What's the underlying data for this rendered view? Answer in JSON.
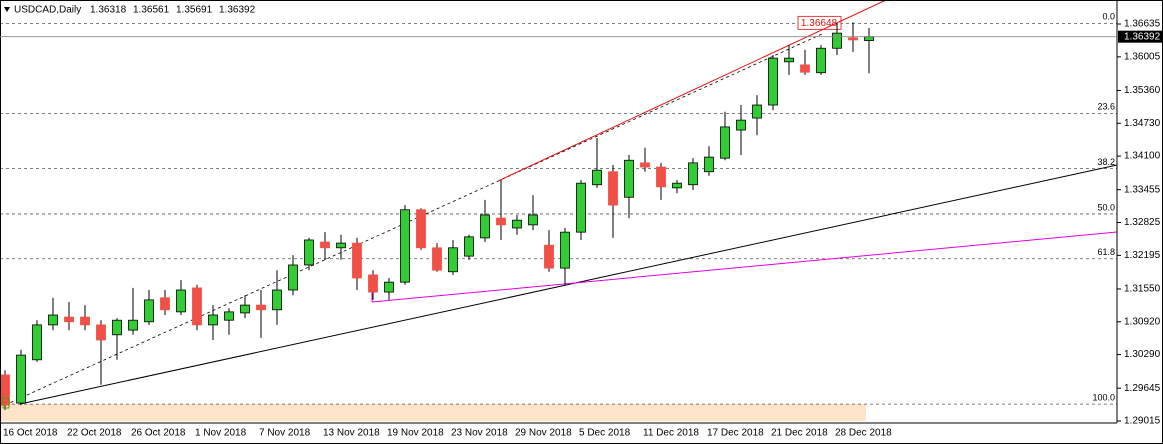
{
  "chart_data": {
    "type": "candlestick",
    "title": "USDCAD,Daily",
    "categories": [
      "16 Oct 2018",
      null,
      null,
      null,
      "22 Oct 2018",
      null,
      null,
      null,
      "26 Oct 2018",
      null,
      null,
      null,
      "1 Nov 2018",
      null,
      null,
      null,
      "7 Nov 2018",
      null,
      null,
      null,
      "13 Nov 2018",
      null,
      null,
      null,
      "19 Nov 2018",
      null,
      null,
      null,
      "23 Nov 2018",
      null,
      null,
      null,
      "29 Nov 2018",
      null,
      null,
      null,
      "5 Dec 2018",
      null,
      null,
      null,
      "11 Dec 2018",
      null,
      null,
      null,
      "17 Dec 2018",
      null,
      null,
      null,
      "21 Dec 2018",
      null,
      null,
      null,
      "28 Dec 2018",
      null,
      null
    ],
    "open": [
      1.299,
      1.2936,
      1.3019,
      1.3086,
      1.3101,
      1.3101,
      1.3086,
      1.3067,
      1.3076,
      1.3092,
      1.3138,
      1.3111,
      1.3157,
      1.3086,
      1.3095,
      1.3109,
      1.3124,
      1.3115,
      1.3153,
      1.3201,
      1.3245,
      1.3234,
      1.3243,
      1.3182,
      1.3149,
      1.3168,
      1.3307,
      1.3234,
      1.3188,
      1.3218,
      1.3253,
      1.3291,
      1.3272,
      1.3278,
      1.3239,
      1.3195,
      1.3264,
      1.3355,
      1.338,
      1.3331,
      1.3397,
      1.3389,
      1.3349,
      1.3355,
      1.338,
      1.3406,
      1.346,
      1.3483,
      1.3508,
      1.3591,
      1.3585,
      1.357,
      1.3617,
      1.3637,
      1.36318
    ],
    "high": [
      1.2999,
      1.3038,
      1.3095,
      1.3138,
      1.313,
      1.3124,
      1.3095,
      1.3099,
      1.3157,
      1.3153,
      1.3153,
      1.3172,
      1.3163,
      1.3124,
      1.3118,
      1.3143,
      1.3153,
      1.3191,
      1.322,
      1.3253,
      1.3264,
      1.3259,
      1.3253,
      1.3191,
      1.3176,
      1.3316,
      1.331,
      1.3243,
      1.3249,
      1.3259,
      1.3326,
      1.3364,
      1.3297,
      1.3335,
      1.3268,
      1.3272,
      1.3364,
      1.3445,
      1.3393,
      1.3412,
      1.3426,
      1.3397,
      1.3364,
      1.3406,
      1.3429,
      1.3495,
      1.3508,
      1.3527,
      1.3604,
      1.3623,
      1.3614,
      1.3623,
      1.3666,
      1.3667,
      1.36561
    ],
    "low": [
      1.2923,
      1.2932,
      1.3015,
      1.3076,
      1.3076,
      1.3076,
      1.2971,
      1.3019,
      1.3067,
      1.3086,
      1.3105,
      1.3105,
      1.3076,
      1.3057,
      1.3067,
      1.3099,
      1.3061,
      1.3086,
      1.3143,
      1.3191,
      1.3211,
      1.3211,
      1.3153,
      1.3134,
      1.3134,
      1.3163,
      1.323,
      1.3188,
      1.3182,
      1.3211,
      1.3245,
      1.3249,
      1.3259,
      1.3268,
      1.3188,
      1.3163,
      1.3249,
      1.3349,
      1.3253,
      1.3291,
      1.338,
      1.3326,
      1.3339,
      1.3345,
      1.3372,
      1.3402,
      1.3412,
      1.345,
      1.3498,
      1.3566,
      1.3566,
      1.3566,
      1.3604,
      1.361,
      1.35691
    ],
    "close": [
      1.2932,
      1.3028,
      1.3086,
      1.3105,
      1.3092,
      1.3086,
      1.3057,
      1.3095,
      1.3095,
      1.3134,
      1.3115,
      1.3153,
      1.3086,
      1.3105,
      1.3111,
      1.3124,
      1.3115,
      1.3153,
      1.3201,
      1.3249,
      1.3234,
      1.3243,
      1.3176,
      1.3149,
      1.3168,
      1.3307,
      1.3234,
      1.3191,
      1.3234,
      1.3255,
      1.3297,
      1.3278,
      1.3287,
      1.3297,
      1.3195,
      1.3264,
      1.3358,
      1.3383,
      1.3316,
      1.3402,
      1.3389,
      1.3351,
      1.3358,
      1.3397,
      1.3408,
      1.3466,
      1.3479,
      1.3508,
      1.3598,
      1.3598,
      1.3571,
      1.3617,
      1.3646,
      1.3633,
      1.36392
    ],
    "up_color": "#32cd32",
    "down_color": "#f05046",
    "ylim": [
      1.28977,
      1.37096
    ],
    "yticks": [
      1.36635,
      1.36005,
      {
        "value": 1.3536,
        "label": "1.35360"
      },
      {
        "value": 1.3473,
        "label": "1.34730"
      },
      {
        "value": 1.341,
        "label": "1.34100"
      },
      1.33455,
      1.32825,
      1.32195,
      {
        "value": 1.3155,
        "label": "1.31550"
      },
      {
        "value": 1.3092,
        "label": "1.30920"
      },
      {
        "value": 1.3029,
        "label": "1.30290"
      },
      1.29645,
      1.29015
    ],
    "grid": false,
    "fibonacci": {
      "levels": [
        {
          "value": 1.36648,
          "label": "0.0"
        },
        {
          "value": 1.3492,
          "label": "23.6"
        },
        {
          "value": 1.3386,
          "label": "38.2"
        },
        {
          "value": 1.3299,
          "label": "50.0"
        },
        {
          "value": 1.3213,
          "label": "61.8"
        },
        {
          "value": 1.2934,
          "label": "100.0"
        }
      ]
    }
  }
}
